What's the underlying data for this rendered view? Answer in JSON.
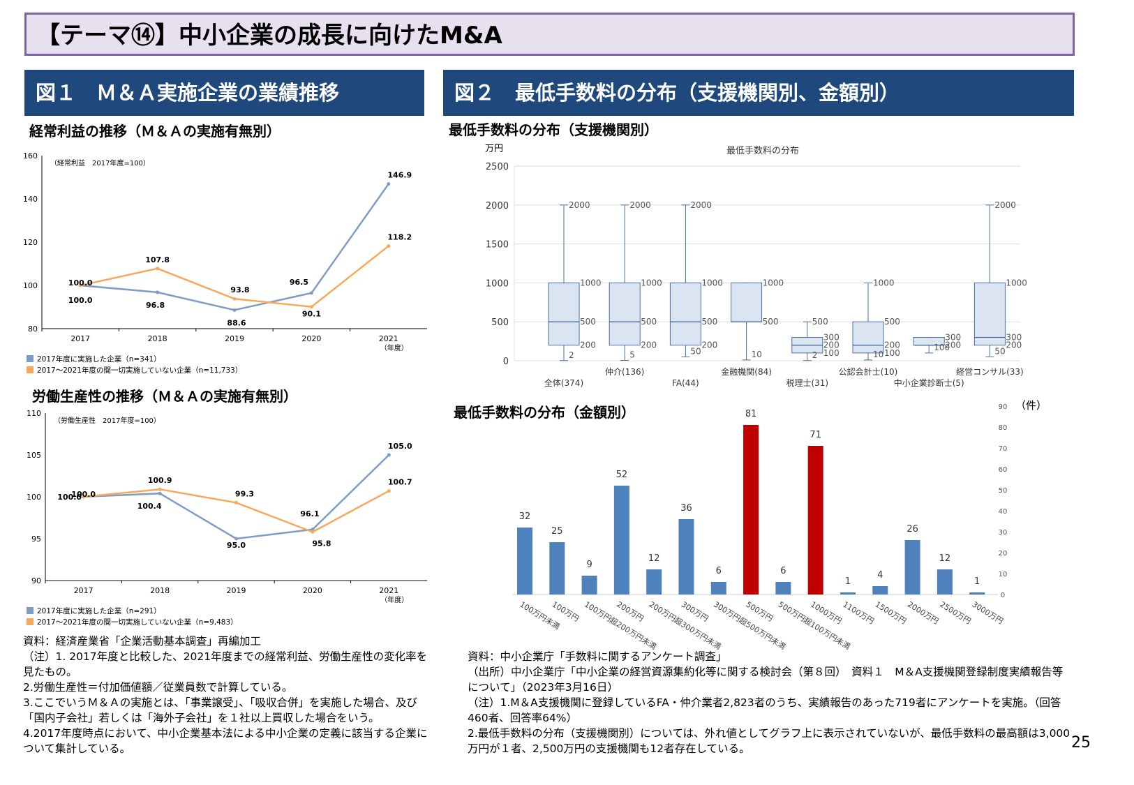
{
  "title": "【テーマ⑭】中小企業の成長に向けたM&A",
  "fig1": {
    "header": "図１　Ｍ＆Ａ実施企業の業績推移"
  },
  "fig2": {
    "header": "図２　最低手数料の分布（支援機関別、金額別）"
  },
  "chart_data": [
    {
      "type": "line",
      "title": "経常利益の推移（Ｍ＆Ａの実施有無別）",
      "note": "（経常利益　2017年度=100）",
      "x": [
        "2017",
        "2018",
        "2019",
        "2020",
        "2021"
      ],
      "xunit": "（年度）",
      "ylim": [
        80,
        160
      ],
      "yticks": [
        80,
        100,
        120,
        140,
        160
      ],
      "series": [
        {
          "name": "2017年度に実施した企業（n=341）",
          "color": "#7f9cc4",
          "values": [
            100.0,
            96.8,
            88.6,
            96.5,
            146.9
          ]
        },
        {
          "name": "2017～2021年度の間一切実施していない企業（n=11,733）",
          "color": "#f6a95b",
          "values": [
            100.0,
            107.8,
            93.8,
            90.1,
            118.2
          ]
        }
      ]
    },
    {
      "type": "line",
      "title": "労働生産性の推移（Ｍ＆Ａの実施有無別）",
      "note": "（労働生産性　2017年度=100）",
      "x": [
        "2017",
        "2018",
        "2019",
        "2020",
        "2021"
      ],
      "xunit": "（年度）",
      "ylim": [
        90,
        110
      ],
      "yticks": [
        90,
        95,
        100,
        105,
        110
      ],
      "series": [
        {
          "name": "2017年度に実施した企業（n=291）",
          "color": "#7f9cc4",
          "values": [
            100.0,
            100.4,
            95.0,
            96.1,
            105.0
          ]
        },
        {
          "name": "2017～2021年度の間一切実施していない企業（n=9,483）",
          "color": "#f6a95b",
          "values": [
            100.0,
            100.9,
            99.3,
            95.8,
            100.7
          ]
        }
      ]
    },
    {
      "type": "box",
      "title": "最低手数料の分布（支援機関別）",
      "chart_title": "最低手数料の分布",
      "yunit": "万円",
      "ylim": [
        0,
        2500
      ],
      "yticks": [
        0,
        500,
        1000,
        1500,
        2000,
        2500
      ],
      "grid": true,
      "categories": [
        "全体(374)",
        "仲介(136)",
        "FA(44)",
        "金融機関(84)",
        "税理士(31)",
        "公認会計士(10)",
        "中小企業診断士(5)",
        "経営コンサル(33)"
      ],
      "boxes": [
        {
          "min": 2,
          "q1": 200,
          "median": 500,
          "q3": 1000,
          "max": 2000
        },
        {
          "min": 5,
          "q1": 200,
          "median": 500,
          "q3": 1000,
          "max": 2000
        },
        {
          "min": 50,
          "q1": 200,
          "median": 500,
          "q3": 1000,
          "max": 2000
        },
        {
          "min": 10,
          "q1": 500,
          "median": 500,
          "q3": 1000,
          "max": 1000
        },
        {
          "min": 2,
          "q1": 100,
          "median": 200,
          "q3": 300,
          "max": 500
        },
        {
          "min": 10,
          "q1": 100,
          "median": 200,
          "q3": 500,
          "max": 1000
        },
        {
          "min": 100,
          "q1": 200,
          "median": 200,
          "q3": 300,
          "max": 300
        },
        {
          "min": 50,
          "q1": 200,
          "median": 300,
          "q3": 1000,
          "max": 2000
        }
      ]
    },
    {
      "type": "bar",
      "title": "最低手数料の分布（金額別）",
      "yunit": "（件）",
      "ylim": [
        0,
        90
      ],
      "yticks": [
        0,
        10,
        20,
        30,
        40,
        50,
        60,
        70,
        80,
        90
      ],
      "axis": "right",
      "categories": [
        "100万円未満",
        "100万円",
        "100万円超200万円未満",
        "200万円",
        "200万円超300万円未満",
        "300万円",
        "300万円超500万円未満",
        "500万円",
        "500万円超100万円未満",
        "1000万円",
        "1100万円",
        "1500万円",
        "2000万円",
        "2500万円",
        "3000万円"
      ],
      "values": [
        32,
        25,
        9,
        52,
        12,
        36,
        6,
        81,
        6,
        71,
        1,
        4,
        26,
        12,
        1
      ],
      "colors": {
        "default": "#4f81bd",
        "highlight": "#c00000"
      },
      "highlight": [
        "500万円",
        "1000万円"
      ]
    }
  ],
  "notes_left": [
    "資料：経済産業省「企業活動基本調査」再編加工",
    "（注）1. 2017年度と比較した、2021年度までの経常利益、労働生産性の変化率を見たもの。",
    "2.労働生産性＝付加価値額／従業員数で計算している。",
    "3.ここでいうＭ＆Ａの実施とは、「事業譲受」、「吸収合併」を実施した場合、及び「国内子会社」若しくは「海外子会社」を１社以上買収した場合をいう。",
    "4.2017年度時点において、中小企業基本法による中小企業の定義に該当する企業について集計している。"
  ],
  "notes_right": [
    "資料：中小企業庁「手数料に関するアンケート調査」",
    "（出所）中小企業庁「中小企業の経営資源集約化等に関する検討会（第８回）　資料１　M＆A支援機関登録制度実績報告等について」（2023年3月16日）",
    "（注）1.M＆A支援機関に登録しているFA・仲介業者2,823者のうち、実績報告のあった719者にアンケートを実施。（回答460者、回答率64%）",
    "2.最低手数料の分布（支援機関別）については、外れ値としてグラフ上に表示されていないが、最低手数料の最高額は3,000万円が１者、2,500万円の支援機関も12者存在している。"
  ],
  "page_number": "25"
}
